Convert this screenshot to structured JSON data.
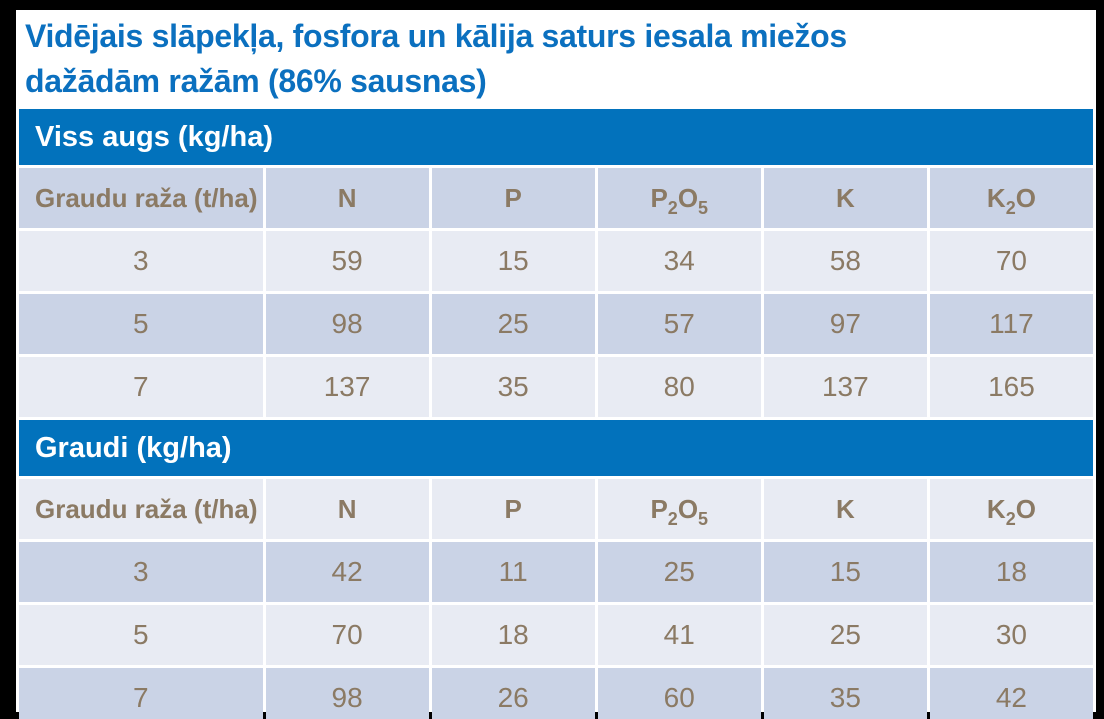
{
  "title": {
    "line1": "Vidējais slāpekļa, fosfora un kālija saturs iesala miežos",
    "line2": "dažādām ražām (86% sausnas)"
  },
  "colors": {
    "title_blue": "#0B70BF",
    "bar_blue": "#0272BC",
    "band_dark": "#CAD3E6",
    "band_light": "#E8EBF3",
    "text_brown": "#8B7A64",
    "frame_black": "#000000",
    "background_white": "#FFFFFF"
  },
  "tables": [
    {
      "section_title": "Viss augs (kg/ha)",
      "header_band": "dark",
      "columns": [
        [
          {
            "t": "Graudu raža (t/ha)"
          }
        ],
        [
          {
            "t": "N"
          }
        ],
        [
          {
            "t": "P"
          }
        ],
        [
          {
            "t": "P"
          },
          {
            "t": "2",
            "sub": true
          },
          {
            "t": "O"
          },
          {
            "t": "5",
            "sub": true
          }
        ],
        [
          {
            "t": "K"
          }
        ],
        [
          {
            "t": "K"
          },
          {
            "t": "2",
            "sub": true
          },
          {
            "t": "O"
          }
        ]
      ],
      "rows": [
        {
          "band": "light",
          "cells": [
            "3",
            "59",
            "15",
            "34",
            "58",
            "70"
          ]
        },
        {
          "band": "dark",
          "cells": [
            "5",
            "98",
            "25",
            "57",
            "97",
            "117"
          ]
        },
        {
          "band": "light",
          "cells": [
            "7",
            "137",
            "35",
            "80",
            "137",
            "165"
          ]
        }
      ]
    },
    {
      "section_title": "Graudi (kg/ha)",
      "header_band": "light",
      "columns": [
        [
          {
            "t": "Graudu raža (t/ha)"
          }
        ],
        [
          {
            "t": "N"
          }
        ],
        [
          {
            "t": "P"
          }
        ],
        [
          {
            "t": "P"
          },
          {
            "t": "2",
            "sub": true
          },
          {
            "t": "O"
          },
          {
            "t": "5",
            "sub": true
          }
        ],
        [
          {
            "t": "K"
          }
        ],
        [
          {
            "t": "K"
          },
          {
            "t": "2",
            "sub": true
          },
          {
            "t": "O"
          }
        ]
      ],
      "rows": [
        {
          "band": "dark",
          "cells": [
            "3",
            "42",
            "11",
            "25",
            "15",
            "18"
          ]
        },
        {
          "band": "light",
          "cells": [
            "5",
            "70",
            "18",
            "41",
            "25",
            "30"
          ]
        },
        {
          "band": "dark",
          "cells": [
            "7",
            "98",
            "26",
            "60",
            "35",
            "42"
          ]
        }
      ]
    }
  ]
}
